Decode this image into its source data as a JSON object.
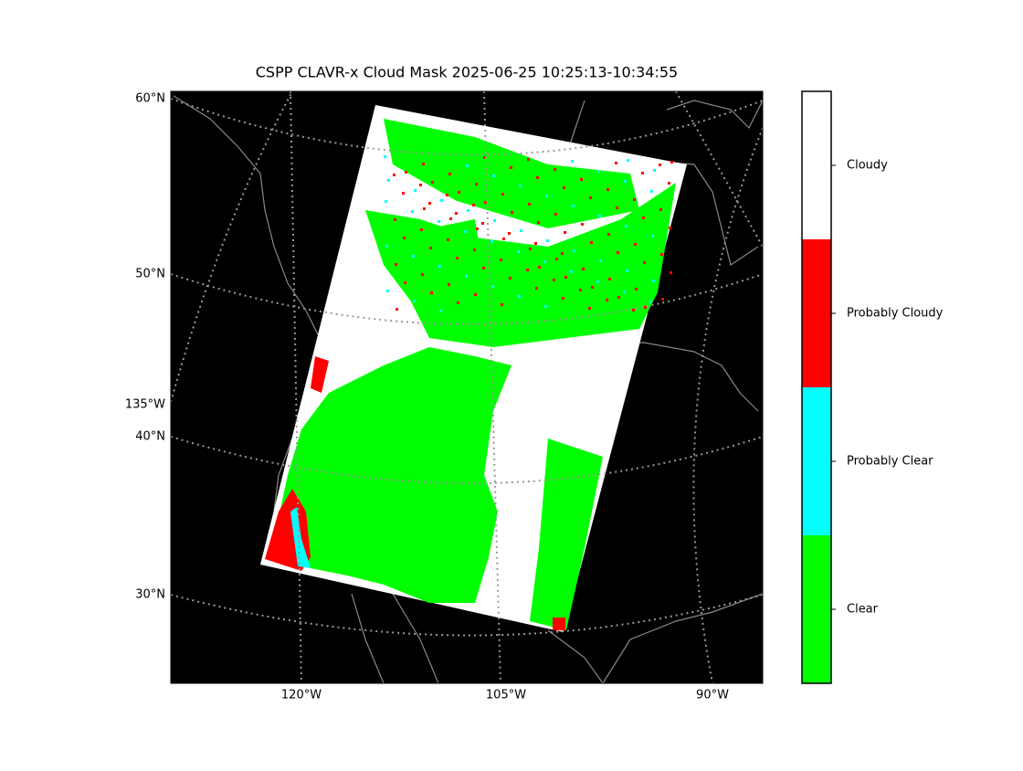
{
  "title": "CSPP CLAVR-x Cloud Mask 2025-06-25 10:25:13-10:34:55",
  "map": {
    "lat_labels": [
      "60°N",
      "50°N",
      "40°N",
      "30°N"
    ],
    "lon_labels": [
      "120°W",
      "105°W",
      "90°W"
    ],
    "side_lon_label": "135°W"
  },
  "colorbar": {
    "classes": [
      {
        "label": "Clear",
        "color": "#00ff00"
      },
      {
        "label": "Probably Clear",
        "color": "#00ffff"
      },
      {
        "label": "Probably Cloudy",
        "color": "#ff0000"
      },
      {
        "label": "Cloudy",
        "color": "#ffffff"
      }
    ]
  }
}
